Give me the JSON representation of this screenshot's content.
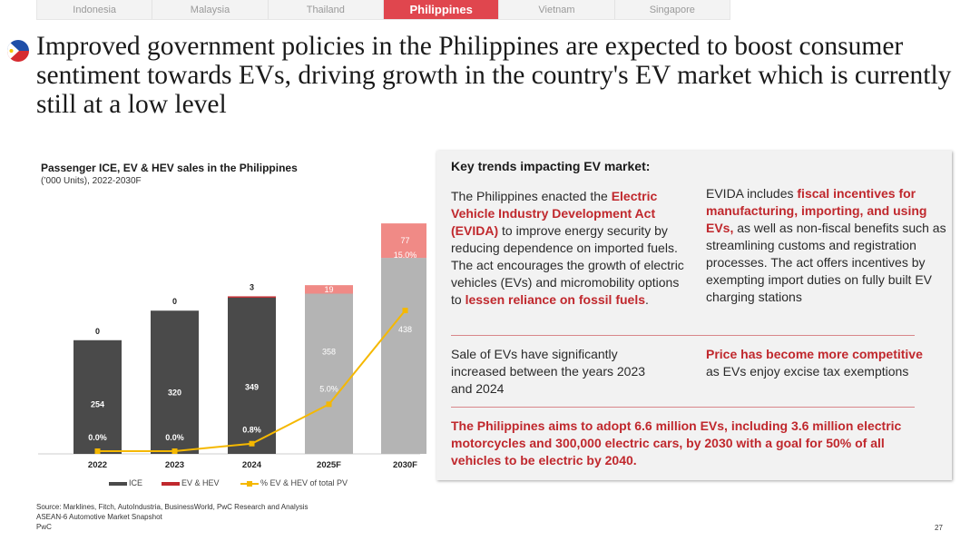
{
  "tabs": [
    {
      "label": "Indonesia",
      "active": false
    },
    {
      "label": "Malaysia",
      "active": false
    },
    {
      "label": "Thailand",
      "active": false
    },
    {
      "label": "Philippines",
      "active": true
    },
    {
      "label": "Vietnam",
      "active": false
    },
    {
      "label": "Singapore",
      "active": false
    }
  ],
  "title": "Improved government policies in the Philippines are expected to boost consumer sentiment towards EVs, driving growth in the country's EV market which is currently still at a low level",
  "chart": {
    "title": "Passenger ICE, EV & HEV sales in the Philippines",
    "subtitle": "(’000 Units), 2022-2030F"
  },
  "chart_data": {
    "type": "bar",
    "stacked": true,
    "categories": [
      "2022",
      "2023",
      "2024",
      "2025F",
      "2030F"
    ],
    "series": [
      {
        "name": "ICE",
        "values": [
          254,
          320,
          349,
          358,
          438
        ],
        "color": "#4a4a4a",
        "forecast_color": "#b4b4b4"
      },
      {
        "name": "EV & HEV",
        "values": [
          0,
          0,
          3,
          19,
          77
        ],
        "color": "#c0282d",
        "forecast_color": "#f08a86"
      }
    ],
    "line_series": {
      "name": "% EV & HEV of total PV",
      "values": [
        0.0,
        0.0,
        0.8,
        5.0,
        15.0
      ],
      "labels": [
        "0.0%",
        "0.0%",
        "0.8%",
        "5.0%",
        "15.0%"
      ],
      "color": "#f5b800"
    },
    "ev_labels": [
      "0",
      "0",
      "3",
      "19",
      "77"
    ],
    "ice_labels": [
      "254",
      "320",
      "349",
      "358",
      "438"
    ],
    "forecast_from_index": 3,
    "legend": [
      "ICE",
      "EV & HEV",
      "% EV & HEV of total PV"
    ],
    "legend_position": "bottom"
  },
  "panel": {
    "title": "Key trends impacting EV market:",
    "b1": {
      "t1": "The Philippines enacted the ",
      "h1": "Electric Vehicle Industry Development Act (EVIDA)",
      "t2": " to improve energy security by reducing dependence on imported fuels. The act encourages the growth of electric vehicles (EVs) and micromobility options to ",
      "h2": "lessen reliance on fossil fuels",
      "t3": "."
    },
    "b2": {
      "t1": "EVIDA includes ",
      "h1": "fiscal incentives for manufacturing, importing, and using EVs,",
      "t2": " as well as non-fiscal benefits such as streamlining customs and registration processes. The act offers incentives by exempting import duties on fully built EV charging stations"
    },
    "b3": "Sale of EVs have significantly increased between the years 2023 and 2024",
    "b4": {
      "h1": "Price has become more competitive",
      "t1": " as EVs enjoy excise tax exemptions"
    },
    "aim": "The Philippines aims to adopt 6.6 million EVs, including 3.6 million electric motorcycles and 300,000 electric cars, by 2030 with a goal for 50% of all vehicles to be electric by 2040."
  },
  "source": [
    "Source: Marklines, Fitch, AutoIndustria, BusinessWorld, PwC Research and Analysis",
    "ASEAN-6 Automotive Market Snapshot",
    "PwC"
  ],
  "page_number": "27",
  "colors": {
    "accent": "#e0464e",
    "highlight": "#c0282d",
    "line": "#f5b800"
  }
}
